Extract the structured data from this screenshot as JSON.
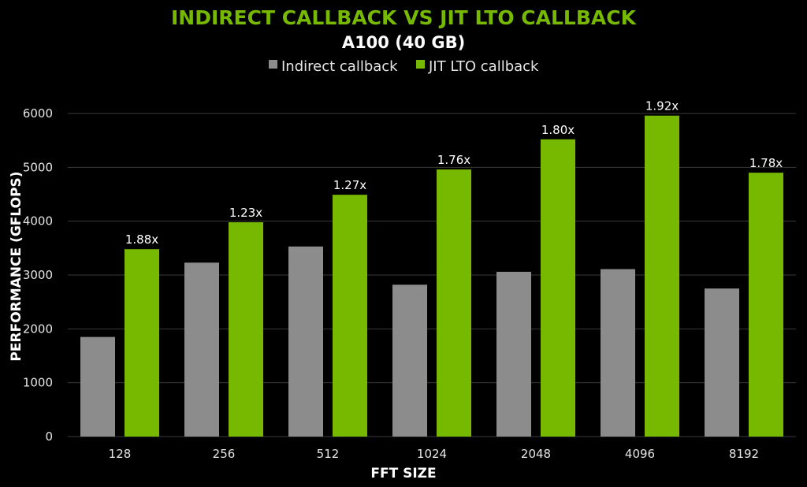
{
  "chart_data": {
    "type": "bar",
    "title": "INDIRECT CALLBACK VS JIT LTO CALLBACK",
    "subtitle": "A100 (40 GB)",
    "xlabel": "FFT SIZE",
    "ylabel": "PERFORMANCE (GFLOPS)",
    "categories": [
      "128",
      "256",
      "512",
      "1024",
      "2048",
      "4096",
      "8192"
    ],
    "ylim": [
      0,
      6000
    ],
    "yticks": [
      "0",
      "1000",
      "2000",
      "3000",
      "4000",
      "5000",
      "6000"
    ],
    "grid": true,
    "legend_position": "top",
    "series": [
      {
        "name": "Indirect callback",
        "color": "#8c8c8c",
        "values": [
          1850,
          3230,
          3530,
          2820,
          3060,
          3110,
          2750
        ]
      },
      {
        "name": "JIT LTO callback",
        "color": "#76b900",
        "values": [
          3480,
          3980,
          4490,
          4960,
          5520,
          5960,
          4900
        ]
      }
    ],
    "bar_labels": [
      "1.88x",
      "1.23x",
      "1.27x",
      "1.76x",
      "1.80x",
      "1.92x",
      "1.78x"
    ]
  },
  "colors": {
    "background": "#000000",
    "title": "#76b900",
    "subtitle": "#ffffff",
    "grid": "#3a3a3a"
  }
}
